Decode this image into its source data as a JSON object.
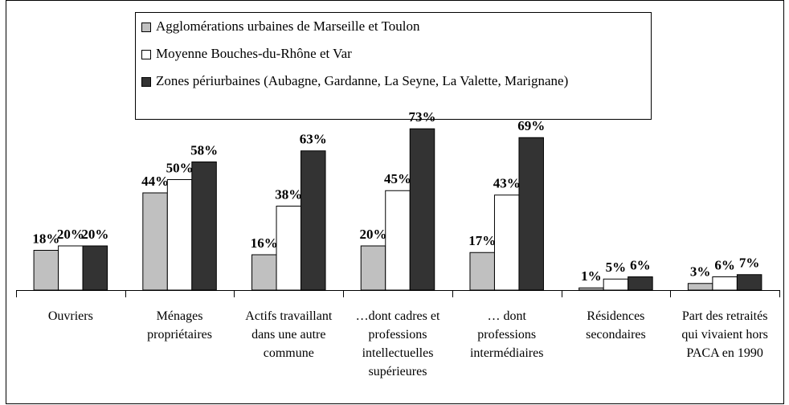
{
  "chart_data": {
    "type": "bar",
    "categories": [
      "Ouvriers",
      "Ménages propriétaires",
      "Actifs travaillant dans une autre commune",
      "…dont cadres et professions intellectuelles supérieures",
      "… dont professions intermédiaires",
      "Résidences secondaires",
      "Part des retraités qui vivaient hors PACA en 1990"
    ],
    "series": [
      {
        "name": "Agglomérations urbaines de Marseille et Toulon",
        "color": "#c0c0c0",
        "values": [
          18,
          44,
          16,
          20,
          17,
          1,
          3
        ],
        "value_labels": [
          "18%",
          "44%",
          "16%",
          "20%",
          "17%",
          "1%",
          "3%"
        ]
      },
      {
        "name": "Moyenne Bouches-du-Rhône et Var",
        "color": "#ffffff",
        "values": [
          20,
          50,
          38,
          45,
          43,
          5,
          6
        ],
        "value_labels": [
          "20%",
          "50%",
          "38%",
          "45%",
          "43%",
          "5%",
          "6%"
        ]
      },
      {
        "name": "Zones périurbaines (Aubagne, Gardanne, La Seyne, La Valette, Marignane)",
        "color": "#333333",
        "values": [
          20,
          58,
          63,
          73,
          69,
          6,
          7
        ],
        "value_labels": [
          "20%",
          "58%",
          "63%",
          "73%",
          "69%",
          "6%",
          "7%"
        ]
      }
    ],
    "ylim": [
      0,
      80
    ]
  }
}
